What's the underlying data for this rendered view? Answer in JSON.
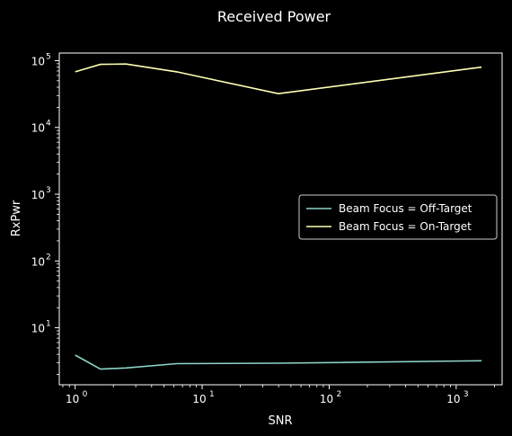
{
  "chart_data": {
    "type": "line",
    "title": "Received Power",
    "xlabel": "SNR",
    "ylabel": "RxPwr",
    "xscale": "log",
    "yscale": "log",
    "xlim": [
      0.75,
      2300
    ],
    "ylim": [
      1.4,
      130000
    ],
    "x_ticks": [
      {
        "value": 1,
        "base": "10",
        "exp": "0"
      },
      {
        "value": 10,
        "base": "10",
        "exp": "1"
      },
      {
        "value": 100,
        "base": "10",
        "exp": "2"
      },
      {
        "value": 1000,
        "base": "10",
        "exp": "3"
      }
    ],
    "y_ticks": [
      {
        "value": 10,
        "base": "10",
        "exp": "1"
      },
      {
        "value": 100,
        "base": "10",
        "exp": "2"
      },
      {
        "value": 1000,
        "base": "10",
        "exp": "3"
      },
      {
        "value": 10000,
        "base": "10",
        "exp": "4"
      },
      {
        "value": 100000,
        "base": "10",
        "exp": "5"
      }
    ],
    "grid": false,
    "legend_position": "center-right",
    "series": [
      {
        "name": "Beam Focus = Off-Target",
        "color": "#8dd3c7",
        "x": [
          1,
          1.58,
          2.51,
          6.31,
          39.8,
          1585
        ],
        "y": [
          3.9,
          2.4,
          2.5,
          2.9,
          2.95,
          3.2
        ]
      },
      {
        "name": "Beam Focus = On-Target",
        "color": "#ffffb3",
        "x": [
          1,
          1.58,
          2.51,
          6.31,
          39.8,
          1585
        ],
        "y": [
          68000,
          88000,
          89000,
          68000,
          32000,
          80000
        ]
      }
    ]
  }
}
